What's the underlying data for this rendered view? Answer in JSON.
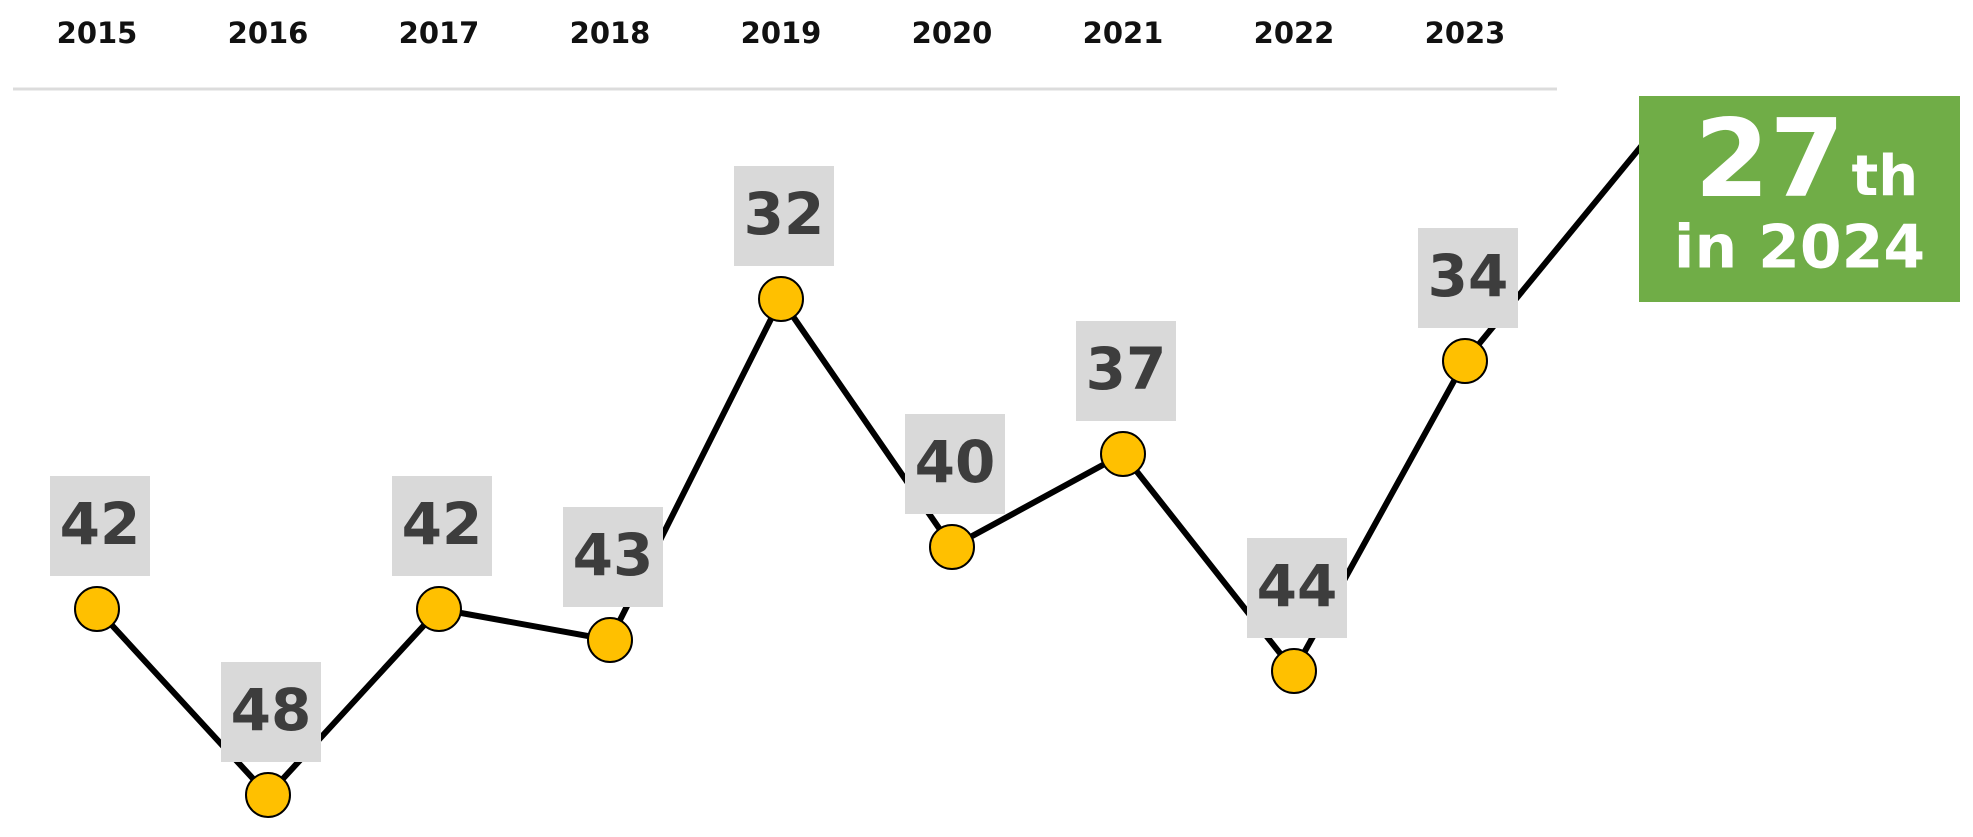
{
  "chart_data": {
    "type": "line",
    "categories": [
      "2015",
      "2016",
      "2017",
      "2018",
      "2019",
      "2020",
      "2021",
      "2022",
      "2023"
    ],
    "values": [
      42,
      48,
      42,
      43,
      32,
      40,
      37,
      44,
      34
    ],
    "ylim": [
      22,
      50
    ],
    "y_inverted": true,
    "line_color": "#000000",
    "marker_color": "#ffc000",
    "label_box_color": "#d9d9d9",
    "annotation": {
      "value": 27,
      "suffix": "th",
      "text": "in 2024",
      "color": "#70ad47"
    }
  }
}
